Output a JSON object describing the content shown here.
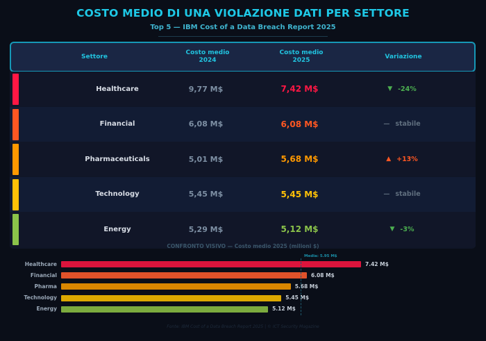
{
  "header": {
    "title": "COSTO MEDIO DI UNA VIOLAZIONE DATI PER SETTORE",
    "subtitle": "Top 5  —  IBM Cost of a Data Breach Report 2025"
  },
  "table": {
    "columns": {
      "sector": "Settore",
      "cost2024": "Costo medio\n2024",
      "cost2025": "Costo medio\n2025",
      "variation": "Variazione"
    },
    "rows": [
      {
        "sector": "Healthcare",
        "cost2024": "9,77 M$",
        "cost2025": "7,42 M$",
        "variation_symbol": "▼",
        "variation": "-24%",
        "accent": "#ff1744",
        "value_color": "#ff1744",
        "variation_color": "#4caf50"
      },
      {
        "sector": "Financial",
        "cost2024": "6,08 M$",
        "cost2025": "6,08 M$",
        "variation_symbol": "—",
        "variation": "stabile",
        "accent": "#ff5722",
        "value_color": "#ff5722",
        "variation_color": "#5f6e7e"
      },
      {
        "sector": "Pharmaceuticals",
        "cost2024": "5,01 M$",
        "cost2025": "5,68 M$",
        "variation_symbol": "▲",
        "variation": "+13%",
        "accent": "#ff9800",
        "value_color": "#ff9800",
        "variation_color": "#ff5722"
      },
      {
        "sector": "Technology",
        "cost2024": "5,45 M$",
        "cost2025": "5,45 M$",
        "variation_symbol": "—",
        "variation": "stabile",
        "accent": "#ffc107",
        "value_color": "#ffc107",
        "variation_color": "#5f6e7e"
      },
      {
        "sector": "Energy",
        "cost2024": "5,29 M$",
        "cost2025": "5,12 M$",
        "variation_symbol": "▼",
        "variation": "-3%",
        "accent": "#8bc34a",
        "value_color": "#8bc34a",
        "variation_color": "#4caf50"
      }
    ]
  },
  "chart_data": {
    "type": "bar",
    "orientation": "horizontal",
    "title": "CONFRONTO VISIVO  —  Costo medio 2025 (milioni $)",
    "categories": [
      "Healthcare",
      "Financial",
      "Pharma",
      "Technology",
      "Energy"
    ],
    "values": [
      7.42,
      6.08,
      5.68,
      5.45,
      5.12
    ],
    "value_labels": [
      "7.42 M$",
      "6.08 M$",
      "5.68 M$",
      "5.45 M$",
      "5.12 M$"
    ],
    "colors": [
      "#dc143c",
      "#e0522a",
      "#d98600",
      "#dca800",
      "#7cab3e"
    ],
    "reference_line": {
      "value": 5.95,
      "label": "Media: 5.95 M$"
    },
    "xlabel": "",
    "ylabel": "",
    "grid": false
  },
  "footer": {
    "source": "Fonte: IBM Cost of a Data Breach Report 2025  |  © ICT Security Magazine"
  }
}
